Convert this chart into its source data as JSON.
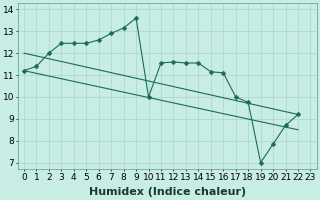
{
  "xlabel": "Humidex (Indice chaleur)",
  "bg_color": "#c8ede5",
  "grid_color": "#b0d8cc",
  "line_color": "#1a6b5a",
  "xlim": [
    -0.5,
    23.5
  ],
  "ylim": [
    6.7,
    14.3
  ],
  "xticks": [
    0,
    1,
    2,
    3,
    4,
    5,
    6,
    7,
    8,
    9,
    10,
    11,
    12,
    13,
    14,
    15,
    16,
    17,
    18,
    19,
    20,
    21,
    22,
    23
  ],
  "yticks": [
    7,
    8,
    9,
    10,
    11,
    12,
    13,
    14
  ],
  "line1_x": [
    0,
    1,
    2,
    3,
    4,
    5,
    6,
    7,
    8,
    9,
    10,
    11,
    12,
    13,
    14,
    15,
    16,
    17,
    18,
    19,
    20,
    21,
    22
  ],
  "line1_y": [
    11.2,
    11.4,
    12.0,
    12.45,
    12.45,
    12.45,
    12.6,
    12.9,
    13.15,
    13.6,
    10.0,
    11.55,
    11.6,
    11.55,
    11.55,
    11.15,
    11.1,
    10.0,
    9.75,
    7.0,
    7.85,
    8.7,
    9.2
  ],
  "line2_x": [
    0,
    22
  ],
  "line2_y": [
    12.0,
    9.2
  ],
  "line3_x": [
    0,
    22
  ],
  "line3_y": [
    11.2,
    8.5
  ],
  "marker": "D",
  "marker_size": 2.5,
  "font_size_label": 8,
  "font_size_tick": 6.5
}
